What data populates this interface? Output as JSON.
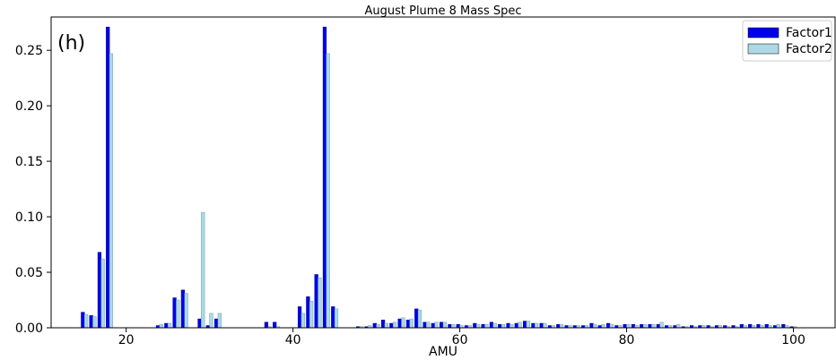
{
  "chart_data": {
    "type": "bar",
    "title": "August Plume 8 Mass Spec",
    "panel_label": "(h)",
    "xlabel": "AMU",
    "ylabel": "",
    "xlim": [
      11,
      105
    ],
    "ylim": [
      0,
      0.28
    ],
    "xticks": [
      20,
      40,
      60,
      80,
      100
    ],
    "yticks": [
      0.0,
      0.05,
      0.1,
      0.15,
      0.2,
      0.25
    ],
    "ytick_labels": [
      "0.00",
      "0.05",
      "0.10",
      "0.15",
      "0.20",
      "0.25"
    ],
    "legend_position": "top-right",
    "grid": false,
    "x": [
      15,
      16,
      17,
      18,
      24,
      25,
      26,
      27,
      29,
      30,
      31,
      37,
      38,
      41,
      42,
      43,
      44,
      45,
      48,
      49,
      50,
      51,
      52,
      53,
      54,
      55,
      56,
      57,
      58,
      59,
      60,
      61,
      62,
      63,
      64,
      65,
      66,
      67,
      68,
      69,
      70,
      71,
      72,
      73,
      74,
      75,
      76,
      77,
      78,
      79,
      80,
      81,
      82,
      83,
      84,
      85,
      86,
      87,
      88,
      89,
      90,
      91,
      92,
      93,
      94,
      95,
      96,
      97,
      98,
      99,
      100
    ],
    "series": [
      {
        "name": "Factor1",
        "color": "#0000ee",
        "values": [
          0.014,
          0.011,
          0.068,
          0.271,
          0.002,
          0.004,
          0.027,
          0.034,
          0.008,
          0.002,
          0.008,
          0.005,
          0.005,
          0.019,
          0.028,
          0.048,
          0.271,
          0.019,
          0.001,
          0.001,
          0.004,
          0.007,
          0.004,
          0.008,
          0.007,
          0.017,
          0.005,
          0.004,
          0.005,
          0.003,
          0.003,
          0.002,
          0.004,
          0.003,
          0.005,
          0.003,
          0.004,
          0.004,
          0.006,
          0.004,
          0.004,
          0.002,
          0.003,
          0.002,
          0.002,
          0.002,
          0.004,
          0.002,
          0.004,
          0.002,
          0.003,
          0.003,
          0.003,
          0.003,
          0.003,
          0.002,
          0.002,
          0.001,
          0.002,
          0.002,
          0.002,
          0.002,
          0.002,
          0.002,
          0.003,
          0.003,
          0.003,
          0.003,
          0.002,
          0.003,
          0.001
        ]
      },
      {
        "name": "Factor2",
        "color": "#add8e6",
        "values": [
          0.012,
          0.01,
          0.062,
          0.247,
          0.003,
          0.004,
          0.025,
          0.031,
          0.104,
          0.013,
          0.013,
          0.001,
          0.001,
          0.013,
          0.024,
          0.045,
          0.247,
          0.017,
          0.001,
          0.002,
          0.003,
          0.004,
          0.005,
          0.009,
          0.008,
          0.016,
          0.005,
          0.005,
          0.005,
          0.003,
          0.002,
          0.002,
          0.003,
          0.003,
          0.004,
          0.003,
          0.003,
          0.005,
          0.006,
          0.004,
          0.004,
          0.002,
          0.003,
          0.002,
          0.002,
          0.002,
          0.003,
          0.003,
          0.003,
          0.002,
          0.003,
          0.002,
          0.003,
          0.003,
          0.005,
          0.002,
          0.003,
          0.001,
          0.001,
          0.002,
          0.001,
          0.002,
          0.001,
          0.001,
          0.002,
          0.002,
          0.002,
          0.002,
          0.003,
          0.002,
          0.001
        ]
      }
    ]
  }
}
